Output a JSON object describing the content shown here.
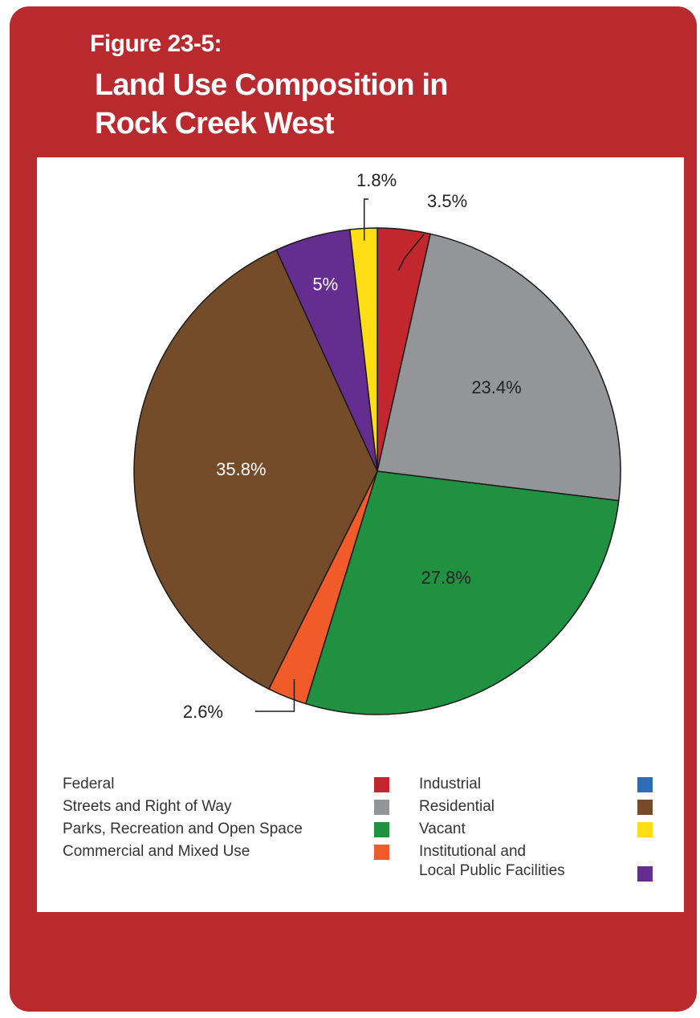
{
  "header": {
    "figure_label": "Figure 23-5:",
    "title_line1": "Land Use Composition in",
    "title_line2": "Rock Creek West"
  },
  "chart_data": {
    "type": "pie",
    "title": "Land Use Composition in Rock Creek West",
    "slices": [
      {
        "label": "Federal",
        "value": 3.5,
        "display": "3.5%",
        "color": "#c1272d"
      },
      {
        "label": "Streets and Right of Way",
        "value": 23.4,
        "display": "23.4%",
        "color": "#939598"
      },
      {
        "label": "Parks, Recreation and Open Space",
        "value": 27.8,
        "display": "27.8%",
        "color": "#1f9140"
      },
      {
        "label": "Commercial and Mixed Use",
        "value": 2.6,
        "display": "2.6%",
        "color": "#f15a29"
      },
      {
        "label": "Residential",
        "value": 35.8,
        "display": "35.8%",
        "color": "#754c29"
      },
      {
        "label": "Institutional and Local Public Facilities",
        "value": 5.0,
        "display": "5%",
        "color": "#662d91"
      },
      {
        "label": "Vacant",
        "value": 1.8,
        "display": "1.8%",
        "color": "#ffde17"
      }
    ],
    "legend": [
      {
        "label": "Federal",
        "color": "#c1272d"
      },
      {
        "label": "Streets and Right of Way",
        "color": "#939598"
      },
      {
        "label": "Parks, Recreation and Open Space",
        "color": "#1f9140"
      },
      {
        "label": "Commercial and Mixed Use",
        "color": "#f15a29"
      },
      {
        "label": "Industrial",
        "color": "#2e6db4"
      },
      {
        "label": "Residential",
        "color": "#754c29"
      },
      {
        "label": "Vacant",
        "color": "#ffde17"
      },
      {
        "label": "Institutional and",
        "label_line2": "Local Public Facilities",
        "color": "#662d91"
      }
    ],
    "legend_placement": "bottom"
  }
}
